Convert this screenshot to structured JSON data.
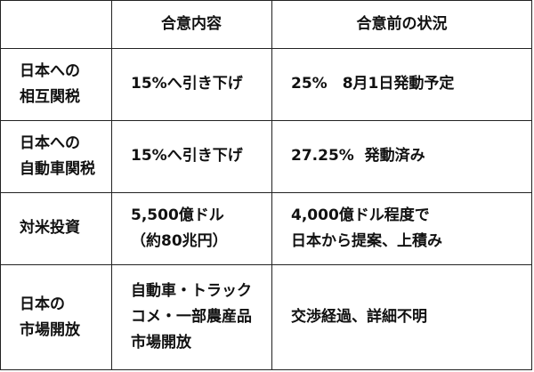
{
  "header": [
    "",
    "合意内容",
    "合意前の状況"
  ],
  "rows": [
    {
      "label": [
        "日本への",
        "相互関税"
      ],
      "agreement": [
        "15%へ引き下げ"
      ],
      "before": [
        "25%　8月1日発動予定"
      ]
    },
    {
      "label": [
        "日本への",
        "自動車関税"
      ],
      "agreement": [
        "15%へ引き下げ"
      ],
      "before": [
        "27.25%  発動済み"
      ]
    },
    {
      "label": [
        "対米投資"
      ],
      "agreement": [
        "5,500億ドル",
        "（約80兆円）"
      ],
      "before": [
        "4,000億ドル程度で",
        "日本から提案、上積み"
      ]
    },
    {
      "label": [
        "日本の",
        "市場開放"
      ],
      "agreement": [
        "自動車・トラック",
        "コメ・一部農産品",
        "市場開放"
      ],
      "before": [
        "交渉経過、詳細不明"
      ]
    }
  ]
}
